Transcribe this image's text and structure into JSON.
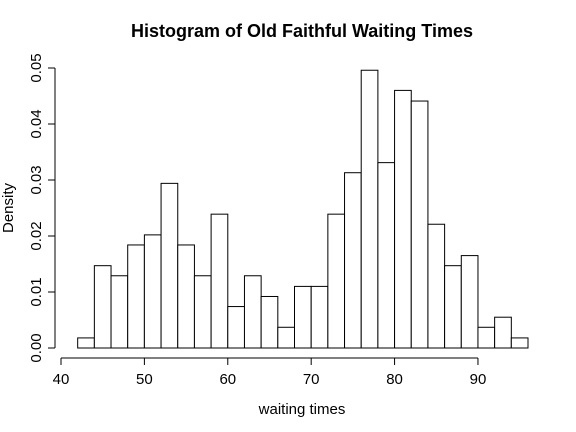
{
  "chart_data": {
    "type": "bar",
    "title": "Histogram of Old Faithful Waiting Times",
    "xlabel": "waiting times",
    "ylabel": "Density",
    "xlim": [
      40,
      96
    ],
    "ylim": [
      0,
      0.05
    ],
    "bin_width": 2,
    "x_ticks": [
      40,
      50,
      60,
      70,
      80,
      90
    ],
    "y_ticks": [
      0.0,
      0.01,
      0.02,
      0.03,
      0.04,
      0.05
    ],
    "y_tick_labels": [
      "0.00",
      "0.01",
      "0.02",
      "0.03",
      "0.04",
      "0.05"
    ],
    "bins": [
      {
        "x0": 42,
        "x1": 44,
        "density": 0.0018
      },
      {
        "x0": 44,
        "x1": 46,
        "density": 0.0147
      },
      {
        "x0": 46,
        "x1": 48,
        "density": 0.0129
      },
      {
        "x0": 48,
        "x1": 50,
        "density": 0.0184
      },
      {
        "x0": 50,
        "x1": 52,
        "density": 0.0202
      },
      {
        "x0": 52,
        "x1": 54,
        "density": 0.0294
      },
      {
        "x0": 54,
        "x1": 56,
        "density": 0.0184
      },
      {
        "x0": 56,
        "x1": 58,
        "density": 0.0129
      },
      {
        "x0": 58,
        "x1": 60,
        "density": 0.0239
      },
      {
        "x0": 60,
        "x1": 62,
        "density": 0.0074
      },
      {
        "x0": 62,
        "x1": 64,
        "density": 0.0129
      },
      {
        "x0": 64,
        "x1": 66,
        "density": 0.0092
      },
      {
        "x0": 66,
        "x1": 68,
        "density": 0.0037
      },
      {
        "x0": 68,
        "x1": 70,
        "density": 0.011
      },
      {
        "x0": 70,
        "x1": 72,
        "density": 0.011
      },
      {
        "x0": 72,
        "x1": 74,
        "density": 0.0239
      },
      {
        "x0": 74,
        "x1": 76,
        "density": 0.0313
      },
      {
        "x0": 76,
        "x1": 78,
        "density": 0.0496
      },
      {
        "x0": 78,
        "x1": 80,
        "density": 0.0331
      },
      {
        "x0": 80,
        "x1": 82,
        "density": 0.046
      },
      {
        "x0": 82,
        "x1": 84,
        "density": 0.0441
      },
      {
        "x0": 84,
        "x1": 86,
        "density": 0.0221
      },
      {
        "x0": 86,
        "x1": 88,
        "density": 0.0147
      },
      {
        "x0": 88,
        "x1": 90,
        "density": 0.0165
      },
      {
        "x0": 90,
        "x1": 92,
        "density": 0.0037
      },
      {
        "x0": 92,
        "x1": 94,
        "density": 0.0055
      },
      {
        "x0": 94,
        "x1": 96,
        "density": 0.0018
      }
    ],
    "grid": false,
    "legend": "none"
  }
}
